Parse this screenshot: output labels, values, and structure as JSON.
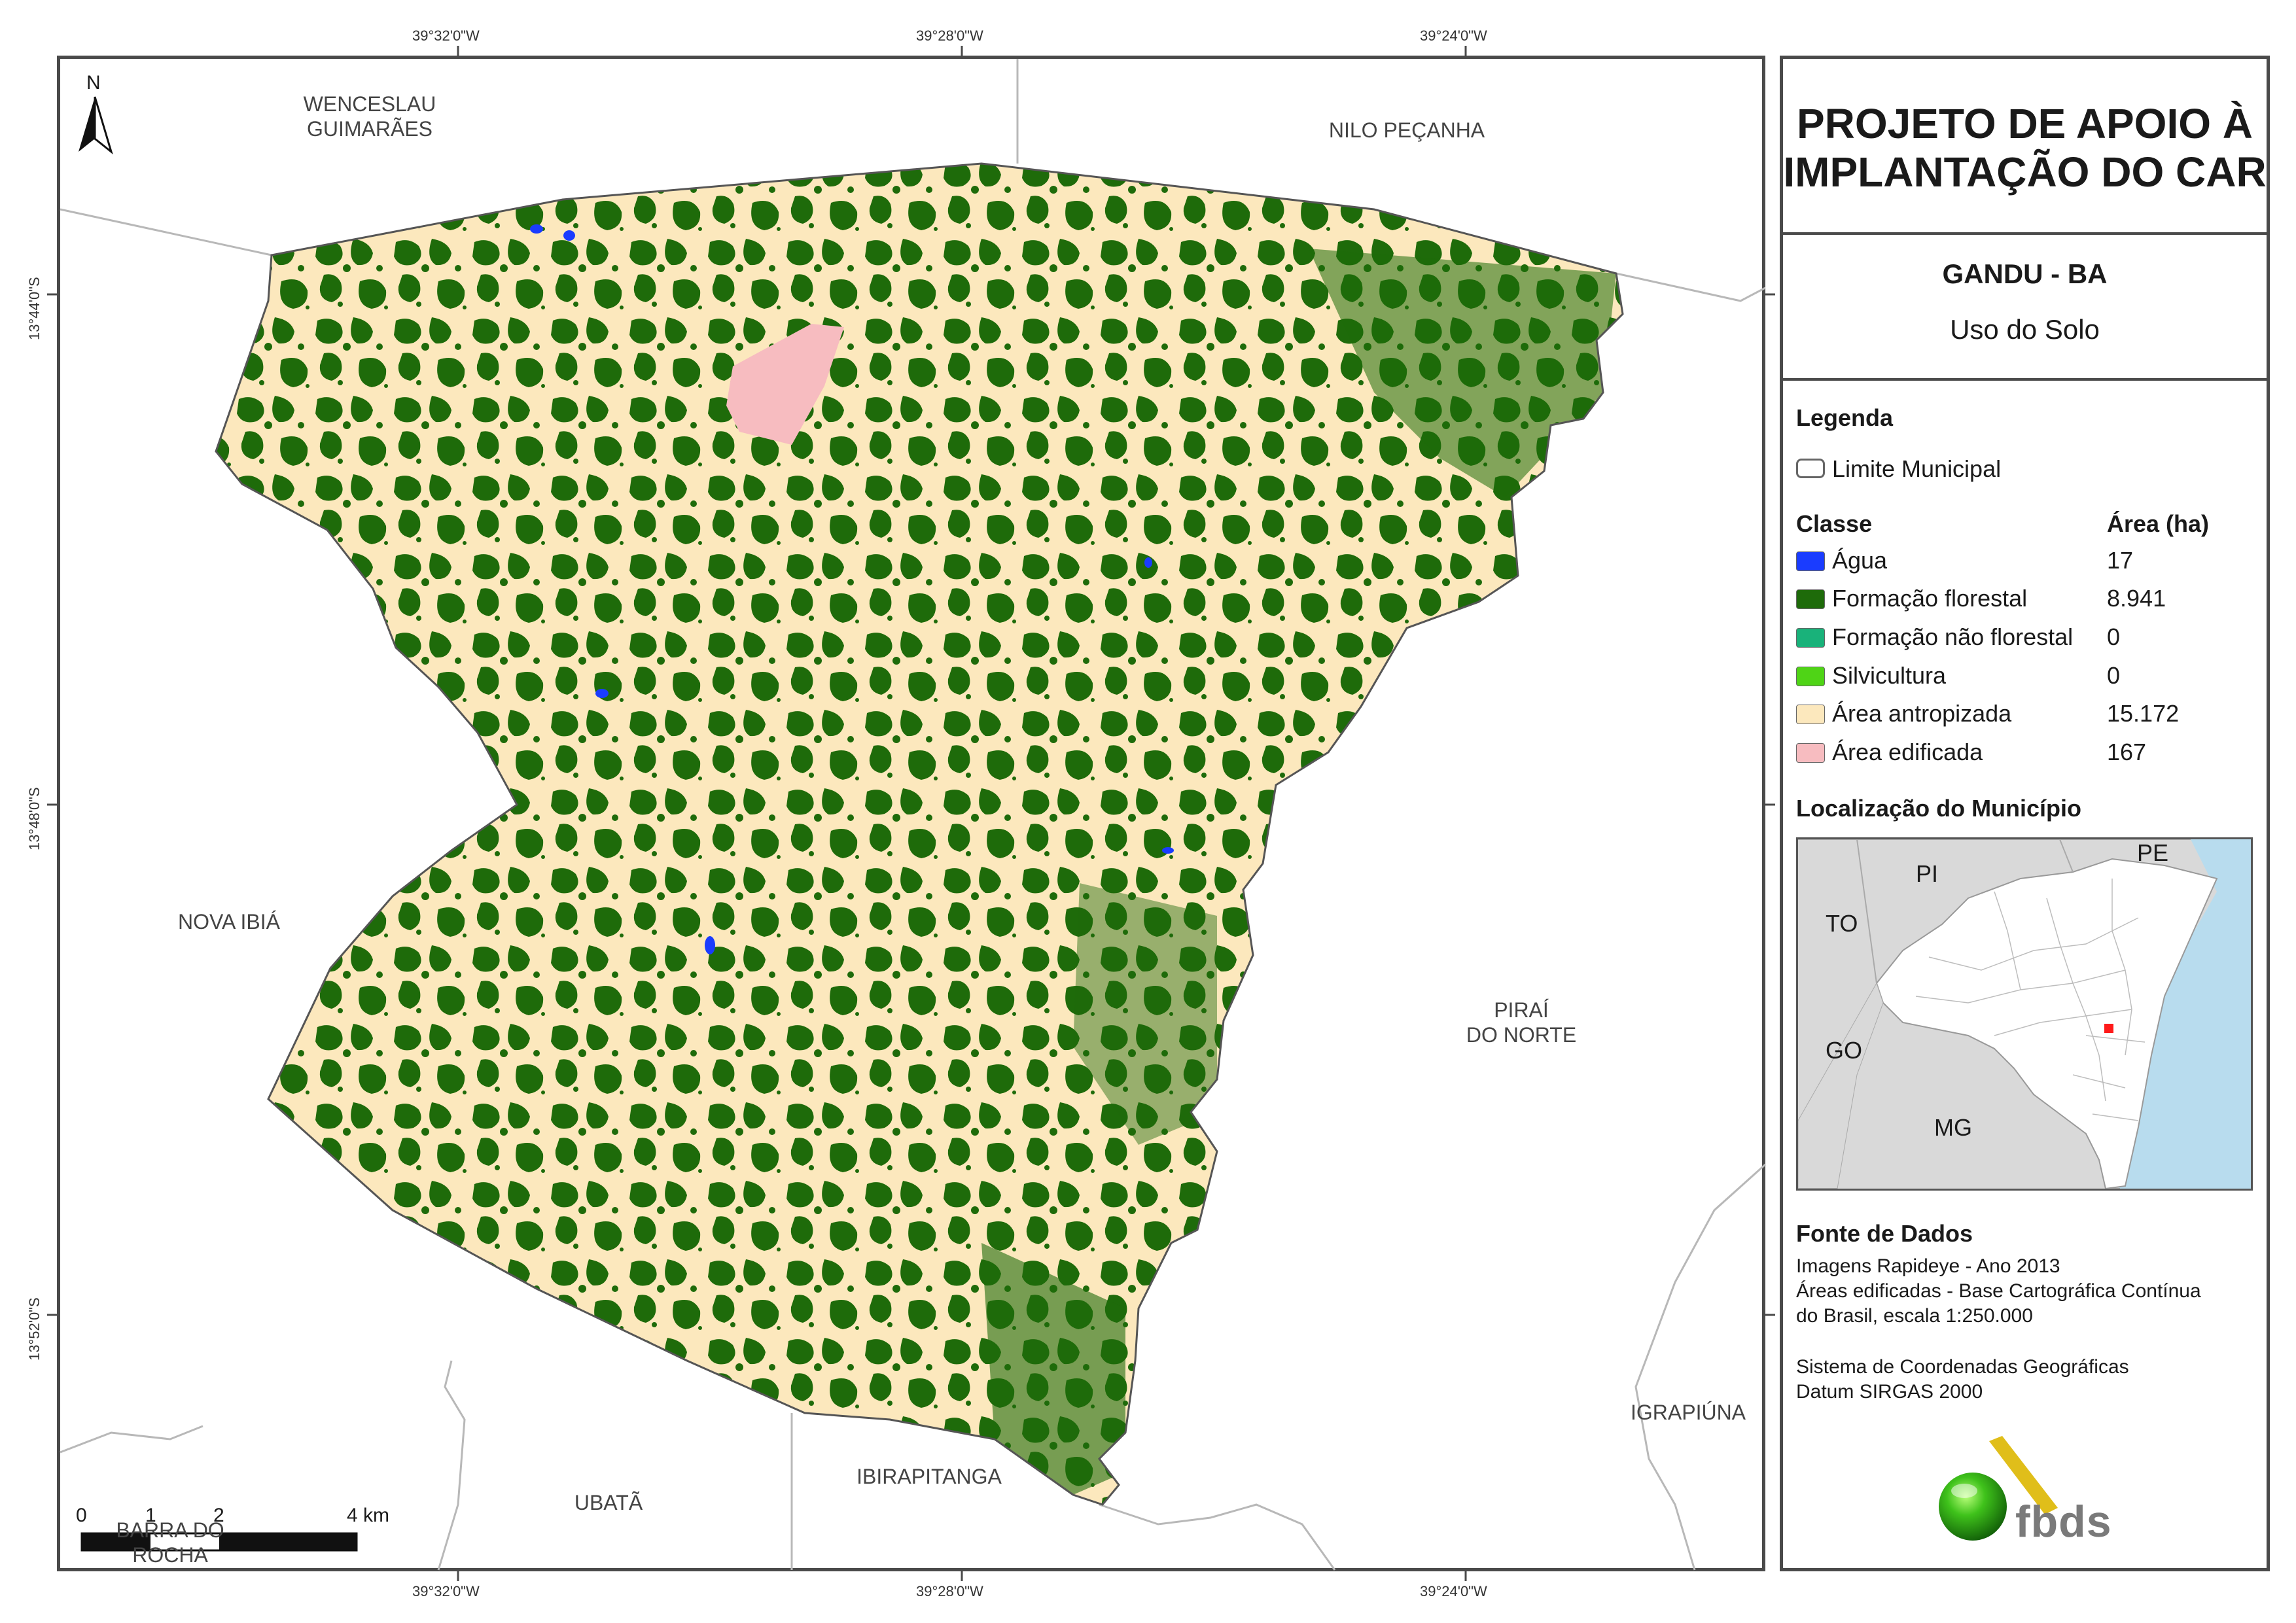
{
  "coordinates": {
    "lon_top": [
      "39°32'0\"W",
      "39°28'0\"W",
      "39°24'0\"W"
    ],
    "lon_bottom": [
      "39°32'0\"W",
      "39°28'0\"W",
      "39°24'0\"W"
    ],
    "lat_left": [
      "13°44'0\"S",
      "13°48'0\"S",
      "13°52'0\"S"
    ]
  },
  "neighbors": {
    "wenceslau": "WENCESLAU\nGUIMARÃES",
    "nilo": "NILO PEÇANHA",
    "nova_ibia": "NOVA IBIÁ",
    "pirai": "PIRAÍ\nDO NORTE",
    "igrapiuna": "IGRAPIÚNA",
    "ubata": "UBATÃ",
    "ibirapitanga": "IBIRAPITANGA",
    "barra": "BARRA DO\nROCHA"
  },
  "north_arrow": {
    "label": "N",
    "icon": "north-arrow-icon"
  },
  "scale_bar": {
    "ticks": [
      "0",
      "1",
      "2",
      "4 km"
    ]
  },
  "panel": {
    "title": "PROJETO DE APOIO À\nIMPLANTAÇÃO DO CAR",
    "municipality": "GANDU - BA",
    "subtitle": "Uso do Solo",
    "legend_heading": "Legenda",
    "boundary_label": "Limite Municipal",
    "class_header": "Classe",
    "area_header": "Área (ha)",
    "classes": [
      {
        "label": "Água",
        "area": "17",
        "color": "#1a3cff"
      },
      {
        "label": "Formação florestal",
        "area": "8.941",
        "color": "#1e6b0a"
      },
      {
        "label": "Formação não florestal",
        "area": "0",
        "color": "#19b27a"
      },
      {
        "label": "Silvicultura",
        "area": "0",
        "color": "#4fd416"
      },
      {
        "label": "Área antropizada",
        "area": "15.172",
        "color": "#fce8bd"
      },
      {
        "label": "Área edificada",
        "area": "167",
        "color": "#f7bcc0"
      }
    ],
    "location_heading": "Localização do Município",
    "states": [
      "PI",
      "PE",
      "TO",
      "GO",
      "MG"
    ],
    "source_heading": "Fonte de Dados",
    "source_lines": [
      "Imagens Rapideye - Ano 2013",
      "Áreas edificadas - Base Cartográfica Contínua",
      "do Brasil, escala 1:250.000",
      "",
      "Sistema de Coordenadas Geográficas",
      "Datum SIRGAS 2000"
    ],
    "logo_text": "fbds"
  }
}
